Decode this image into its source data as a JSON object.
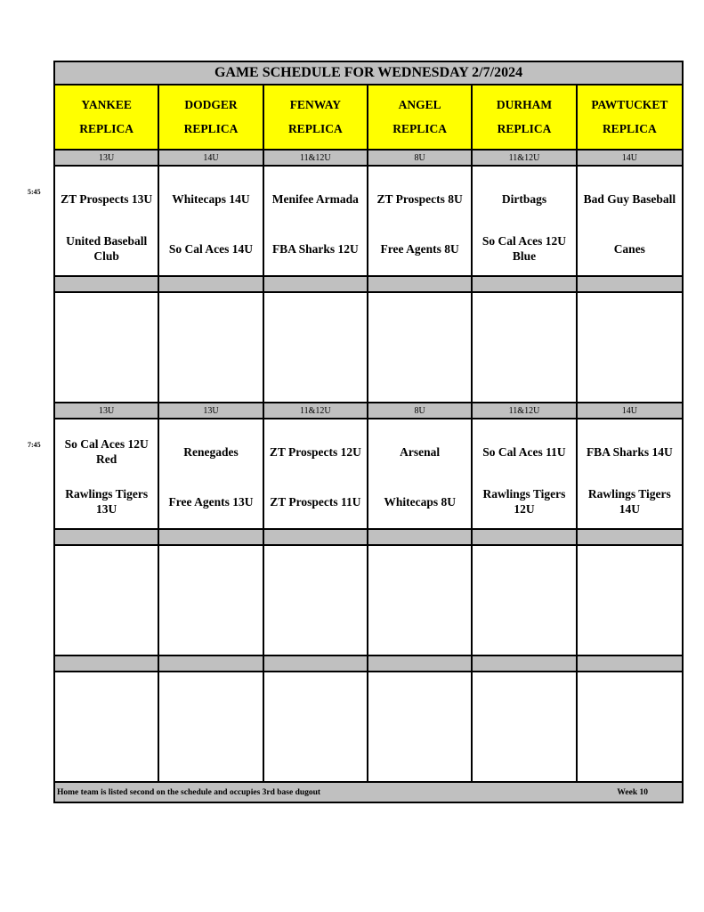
{
  "title": "GAME SCHEDULE FOR WEDNESDAY 2/7/2024",
  "fields": [
    {
      "name": "YANKEE",
      "sub": "REPLICA"
    },
    {
      "name": "DODGER",
      "sub": "REPLICA"
    },
    {
      "name": "FENWAY",
      "sub": "REPLICA"
    },
    {
      "name": "ANGEL",
      "sub": "REPLICA"
    },
    {
      "name": "DURHAM",
      "sub": "REPLICA"
    },
    {
      "name": "PAWTUCKET",
      "sub": "REPLICA"
    }
  ],
  "slots": [
    {
      "time": "5:45",
      "ages": [
        "13U",
        "14U",
        "11&12U",
        "8U",
        "11&12U",
        "14U"
      ],
      "games": [
        {
          "away": "ZT Prospects 13U",
          "home": "United Baseball Club"
        },
        {
          "away": "Whitecaps 14U",
          "home": "So Cal Aces 14U"
        },
        {
          "away": "Menifee Armada",
          "home": "FBA Sharks 12U"
        },
        {
          "away": "ZT Prospects 8U",
          "home": "Free Agents 8U"
        },
        {
          "away": "Dirtbags",
          "home": "So Cal Aces 12U Blue"
        },
        {
          "away": "Bad Guy Baseball",
          "home": "Canes"
        }
      ]
    },
    {
      "time": "7:45",
      "ages": [
        "13U",
        "13U",
        "11&12U",
        "8U",
        "11&12U",
        "14U"
      ],
      "games": [
        {
          "away": "So Cal Aces 12U Red",
          "home": "Rawlings Tigers 13U"
        },
        {
          "away": "Renegades",
          "home": "Free Agents 13U"
        },
        {
          "away": "ZT Prospects 12U",
          "home": "ZT Prospects 11U"
        },
        {
          "away": "Arsenal",
          "home": "Whitecaps 8U"
        },
        {
          "away": "So Cal Aces 11U",
          "home": "Rawlings Tigers 12U"
        },
        {
          "away": "FBA Sharks 14U",
          "home": "Rawlings Tigers 14U"
        }
      ]
    }
  ],
  "footer": {
    "note": "Home team is listed second on the schedule and occupies 3rd base dugout",
    "week": "Week 10"
  }
}
